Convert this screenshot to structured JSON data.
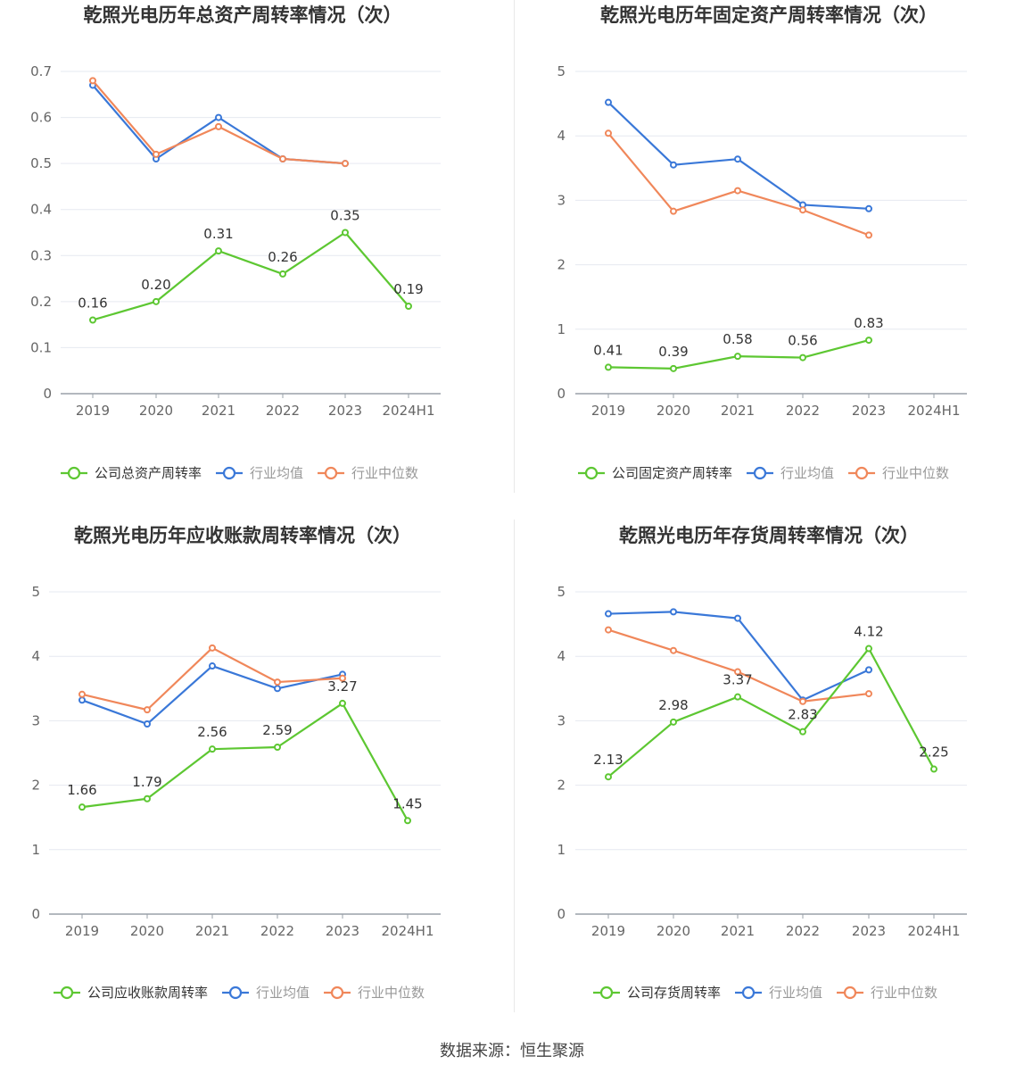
{
  "source_text": "数据来源：恒生聚源",
  "legend_labels": {
    "industry_avg": "行业均值",
    "industry_median": "行业中位数"
  },
  "colors": {
    "company": "#5dc732",
    "industry_avg": "#3a78d8",
    "industry_median": "#f0875a",
    "grid": "#e6e9f0",
    "axis": "#9aa0a8",
    "tick_text": "#666666",
    "title": "#333333"
  },
  "charts": [
    {
      "title": "乾照光电历年总资产周转率情况（次）",
      "company_label": "公司总资产周转率",
      "y_ticks": [
        "0",
        "0.1",
        "0.2",
        "0.3",
        "0.4",
        "0.5",
        "0.6",
        "0.7"
      ]
    },
    {
      "title": "乾照光电历年固定资产周转率情况（次）",
      "company_label": "公司固定资产周转率",
      "y_ticks": [
        "0",
        "1",
        "2",
        "3",
        "4",
        "5"
      ]
    },
    {
      "title": "乾照光电历年应收账款周转率情况（次）",
      "company_label": "公司应收账款周转率",
      "y_ticks": [
        "0",
        "1",
        "2",
        "3",
        "4",
        "5"
      ]
    },
    {
      "title": "乾照光电历年存货周转率情况（次）",
      "company_label": "公司存货周转率",
      "y_ticks": [
        "0",
        "1",
        "2",
        "3",
        "4",
        "5"
      ]
    }
  ],
  "chart_data": [
    {
      "type": "line",
      "title": "乾照光电历年总资产周转率情况（次）",
      "categories": [
        "2019",
        "2020",
        "2021",
        "2022",
        "2023",
        "2024H1"
      ],
      "ylim": [
        0,
        0.7
      ],
      "grid": true,
      "legend": "bottom",
      "series": [
        {
          "name": "公司总资产周转率",
          "values": [
            0.16,
            0.2,
            0.31,
            0.26,
            0.35,
            0.19
          ],
          "labels": [
            "0.16",
            "0.20",
            "0.31",
            "0.26",
            "0.35",
            "0.19"
          ]
        },
        {
          "name": "行业均值",
          "values": [
            0.67,
            0.51,
            0.6,
            0.51,
            0.5,
            null
          ]
        },
        {
          "name": "行业中位数",
          "values": [
            0.68,
            0.52,
            0.58,
            0.51,
            0.5,
            null
          ]
        }
      ]
    },
    {
      "type": "line",
      "title": "乾照光电历年固定资产周转率情况（次）",
      "categories": [
        "2019",
        "2020",
        "2021",
        "2022",
        "2023",
        "2024H1"
      ],
      "ylim": [
        0,
        5
      ],
      "grid": true,
      "legend": "bottom",
      "series": [
        {
          "name": "公司固定资产周转率",
          "values": [
            0.41,
            0.39,
            0.58,
            0.56,
            0.83,
            null
          ],
          "labels": [
            "0.41",
            "0.39",
            "0.58",
            "0.56",
            "0.83",
            null
          ]
        },
        {
          "name": "行业均值",
          "values": [
            4.52,
            3.55,
            3.64,
            2.93,
            2.87,
            null
          ]
        },
        {
          "name": "行业中位数",
          "values": [
            4.04,
            2.83,
            3.15,
            2.85,
            2.46,
            null
          ]
        }
      ]
    },
    {
      "type": "line",
      "title": "乾照光电历年应收账款周转率情况（次）",
      "categories": [
        "2019",
        "2020",
        "2021",
        "2022",
        "2023",
        "2024H1"
      ],
      "ylim": [
        0,
        5
      ],
      "grid": true,
      "legend": "bottom",
      "series": [
        {
          "name": "公司应收账款周转率",
          "values": [
            1.66,
            1.79,
            2.56,
            2.59,
            3.27,
            1.45
          ],
          "labels": [
            "1.66",
            "1.79",
            "2.56",
            "2.59",
            "3.27",
            "1.45"
          ]
        },
        {
          "name": "行业均值",
          "values": [
            3.32,
            2.95,
            3.85,
            3.5,
            3.72,
            null
          ]
        },
        {
          "name": "行业中位数",
          "values": [
            3.41,
            3.17,
            4.13,
            3.6,
            3.66,
            null
          ]
        }
      ]
    },
    {
      "type": "line",
      "title": "乾照光电历年存货周转率情况（次）",
      "categories": [
        "2019",
        "2020",
        "2021",
        "2022",
        "2023",
        "2024H1"
      ],
      "ylim": [
        0,
        5
      ],
      "grid": true,
      "legend": "bottom",
      "series": [
        {
          "name": "公司存货周转率",
          "values": [
            2.13,
            2.98,
            3.37,
            2.83,
            4.12,
            2.25
          ],
          "labels": [
            "2.13",
            "2.98",
            "3.37",
            "2.83",
            "4.12",
            "2.25"
          ]
        },
        {
          "name": "行业均值",
          "values": [
            4.66,
            4.69,
            4.59,
            3.32,
            3.79,
            null
          ]
        },
        {
          "name": "行业中位数",
          "values": [
            4.41,
            4.09,
            3.76,
            3.3,
            3.42,
            null
          ]
        }
      ]
    }
  ]
}
